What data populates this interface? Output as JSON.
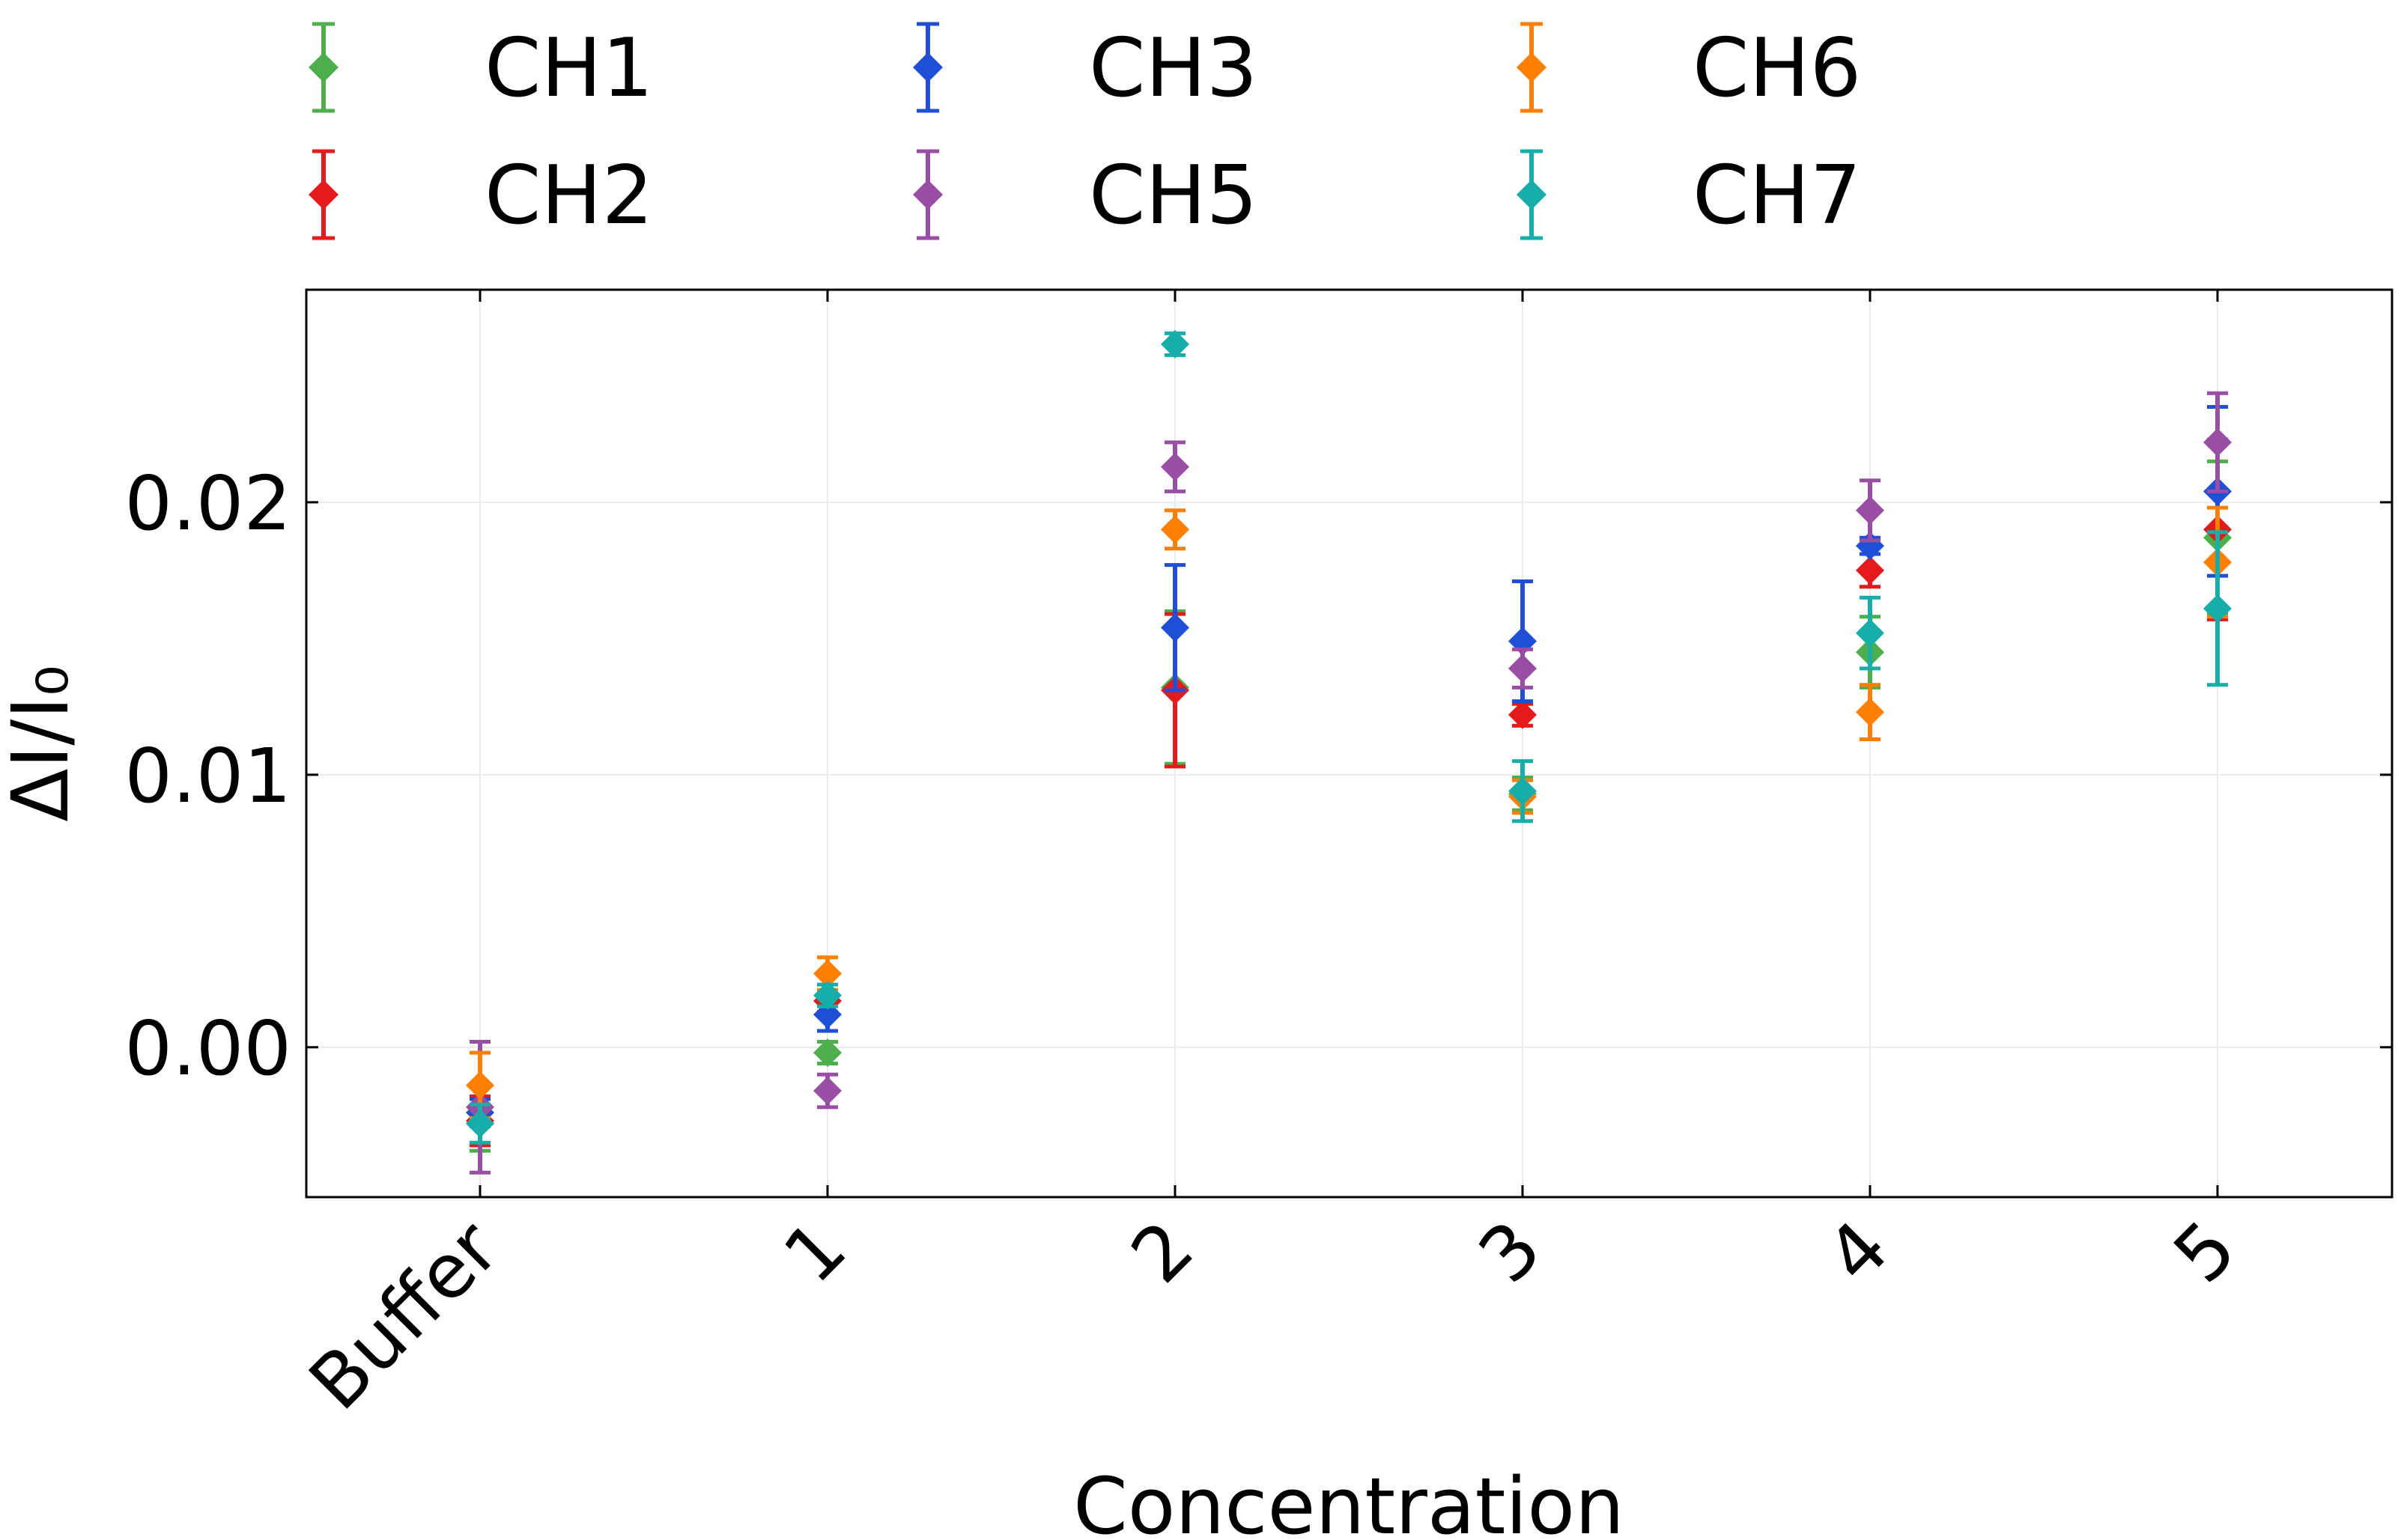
{
  "chart_data": {
    "type": "scatter",
    "xlabel": "Concentration",
    "ylabel": "ΔI/I₀",
    "categories": [
      "Buffer",
      "1",
      "2",
      "3",
      "4",
      "5"
    ],
    "ylim": [
      -0.0055,
      0.0278
    ],
    "yticks": [
      0.0,
      0.01,
      0.02
    ],
    "ytick_labels": [
      "0.00",
      "0.01",
      "0.02"
    ],
    "grid": true,
    "legend_placement": "top, outside plot, 3 columns",
    "marker": "diamond with error bars",
    "series": [
      {
        "name": "CH1",
        "color": "#4daf4a",
        "values": [
          -0.0028,
          -0.0002,
          0.0132,
          0.0093,
          0.0145,
          0.0187
        ],
        "errors": [
          0.001,
          0.0004,
          0.0028,
          0.0006,
          0.0013,
          0.0028
        ]
      },
      {
        "name": "CH2",
        "color": "#e41a1c",
        "values": [
          -0.0027,
          0.0017,
          0.0131,
          0.0122,
          0.0175,
          0.019
        ],
        "errors": [
          0.0009,
          0.0004,
          0.0028,
          0.0004,
          0.0006,
          0.0033
        ]
      },
      {
        "name": "CH3",
        "color": "#1f4fd6",
        "values": [
          -0.0024,
          0.0012,
          0.0154,
          0.0149,
          0.0184,
          0.0204
        ],
        "errors": [
          0.0005,
          0.0006,
          0.0023,
          0.0022,
          0.0003,
          0.0031
        ]
      },
      {
        "name": "CH5",
        "color": "#984ea3",
        "values": [
          -0.0022,
          -0.0016,
          0.0213,
          0.0139,
          0.0197,
          0.0222
        ],
        "errors": [
          0.0024,
          0.0006,
          0.0009,
          0.0007,
          0.0011,
          0.0018
        ]
      },
      {
        "name": "CH6",
        "color": "#ff7f00",
        "values": [
          -0.0014,
          0.0027,
          0.019,
          0.0092,
          0.0123,
          0.0178
        ],
        "errors": [
          0.0012,
          0.0006,
          0.0007,
          0.0006,
          0.001,
          0.002
        ]
      },
      {
        "name": "CH7",
        "color": "#17aeaa",
        "values": [
          -0.0028,
          0.0019,
          0.0258,
          0.0094,
          0.0152,
          0.0161
        ],
        "errors": [
          0.0007,
          0.0004,
          0.0004,
          0.0011,
          0.0013,
          0.0028
        ]
      }
    ],
    "legend_order": [
      "CH1",
      "CH3",
      "CH6",
      "CH2",
      "CH5",
      "CH7"
    ]
  }
}
